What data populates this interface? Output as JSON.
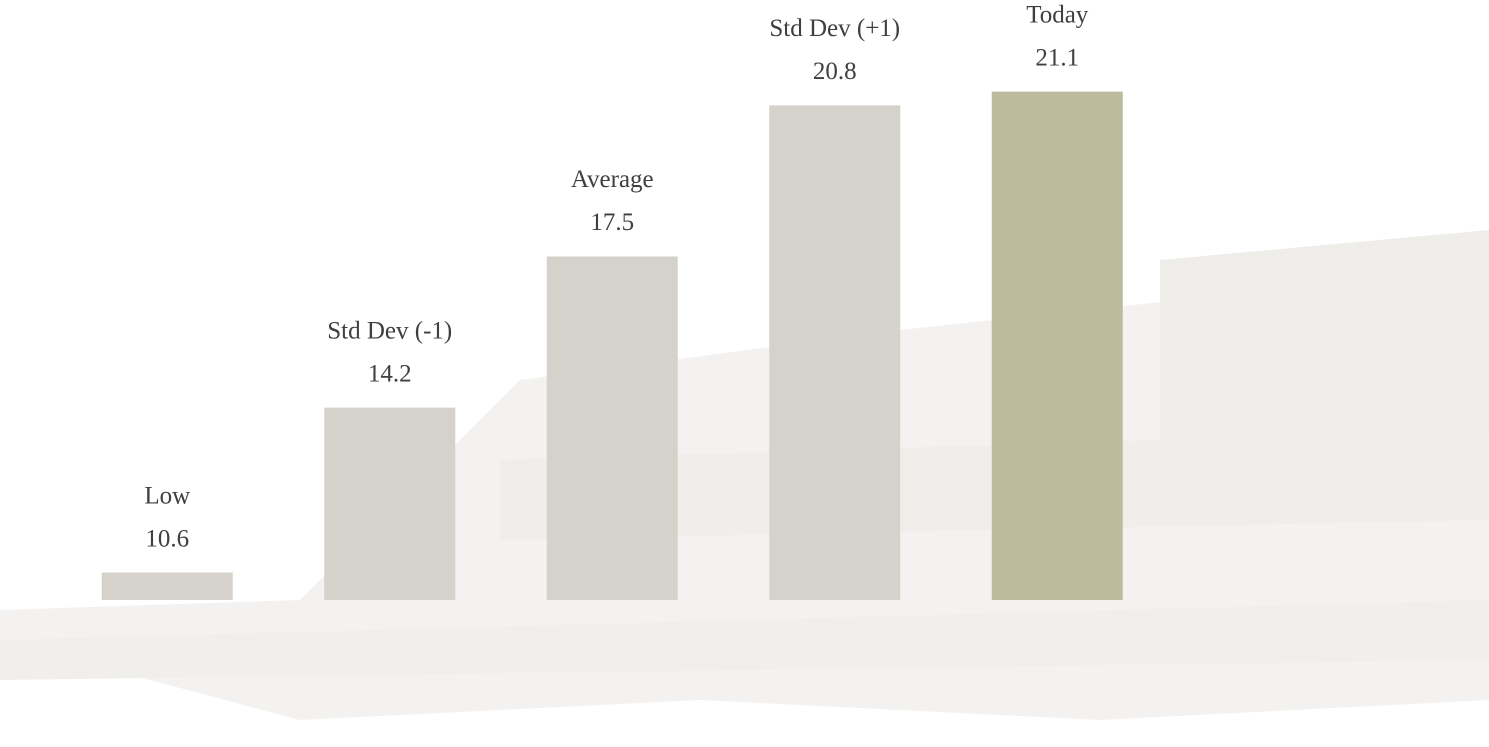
{
  "chart_data": {
    "type": "bar",
    "categories": [
      "Low",
      "Std Dev (-1)",
      "Average",
      "Std Dev (+1)",
      "Today"
    ],
    "values": [
      10.6,
      14.2,
      17.5,
      20.8,
      21.1
    ],
    "colors": [
      "#d5d2cc",
      "#d5d2cc",
      "#d5d2cc",
      "#d5d2cc",
      "#bcbc9c"
    ],
    "ylim": [
      10,
      22
    ]
  }
}
